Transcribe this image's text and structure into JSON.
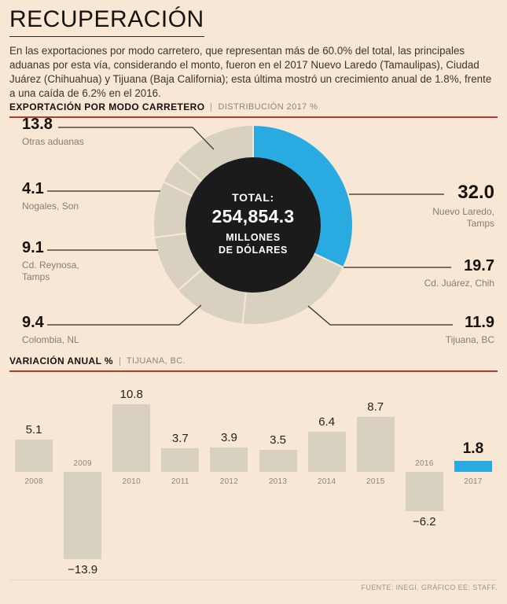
{
  "colors": {
    "background": "#f8e7d4",
    "accent_blue": "#29abe2",
    "slice_default": "#d9d1c0",
    "bar_default": "#d9d1c0",
    "donut_center": "#1b1b1b",
    "rule_red": "#a8402f",
    "text_dark": "#17120e",
    "text_gray": "#857d71"
  },
  "header": {
    "title": "RECUPERACIÓN",
    "intro": "En las exportaciones por modo carretero, que representan más de 60.0% del total, las principales aduanas por esta vía, considerando el monto, fueron en el 2017 Nuevo Laredo (Tamaulipas), Ciudad Juárez (Chihuahua) y Tijuana (Baja California); esta última mostró un crecimiento anual de 1.8%, frente a una caída de 6.2% en el 2016."
  },
  "donut_section": {
    "heading": "EXPORTACIÓN POR MODO CARRETERO",
    "subheading": "DISTRIBUCIÓN 2017 %",
    "center_label": "TOTAL:",
    "center_value": "254,854.3",
    "center_unit_line1": "MILLONES",
    "center_unit_line2": "DE DÓLARES"
  },
  "bar_section": {
    "heading": "VARIACIÓN ANUAL %",
    "subheading": "TIJUANA, BC."
  },
  "footer": {
    "source": "FUENTE: INEGI. GRÁFICO EE: STAFF."
  },
  "chart_data": [
    {
      "type": "pie",
      "subtype": "donut",
      "title": "EXPORTACIÓN POR MODO CARRETERO — DISTRIBUCIÓN 2017 %",
      "center_text": "TOTAL: 254,854.3 MILLONES DE DÓLARES",
      "start_angle_deg": 0,
      "direction": "clockwise",
      "slices": [
        {
          "label": "Nuevo Laredo, Tamps",
          "value": 32.0,
          "display": "32.0",
          "color": "#29abe2"
        },
        {
          "label": "Cd. Juárez, Chih",
          "value": 19.7,
          "display": "19.7",
          "color": "#d9d1c0"
        },
        {
          "label": "Tijuana, BC",
          "value": 11.9,
          "display": "11.9",
          "color": "#d9d1c0"
        },
        {
          "label": "Colombia, NL",
          "value": 9.4,
          "display": "9.4",
          "color": "#d9d1c0"
        },
        {
          "label": "Cd. Reynosa, Tamps",
          "value": 9.1,
          "display": "9.1",
          "color": "#d9d1c0"
        },
        {
          "label": "Nogales, Son",
          "value": 4.1,
          "display": "4.1",
          "color": "#d9d1c0"
        },
        {
          "label": "Otras aduanas",
          "value": 13.8,
          "display": "13.8",
          "color": "#d9d1c0"
        }
      ]
    },
    {
      "type": "bar",
      "title": "VARIACIÓN ANUAL % — TIJUANA, BC.",
      "categories": [
        "2008",
        "2009",
        "2010",
        "2011",
        "2012",
        "2013",
        "2014",
        "2015",
        "2016",
        "2017"
      ],
      "values": [
        5.1,
        -13.9,
        10.8,
        3.7,
        3.9,
        3.5,
        6.4,
        8.7,
        -6.2,
        1.8
      ],
      "displays": [
        "5.1",
        "−13.9",
        "10.8",
        "3.7",
        "3.9",
        "3.5",
        "6.4",
        "8.7",
        "−6.2",
        "1.8"
      ],
      "highlight_index": 9,
      "ylim": [
        -15,
        12
      ],
      "grid": false,
      "legend": false
    }
  ]
}
